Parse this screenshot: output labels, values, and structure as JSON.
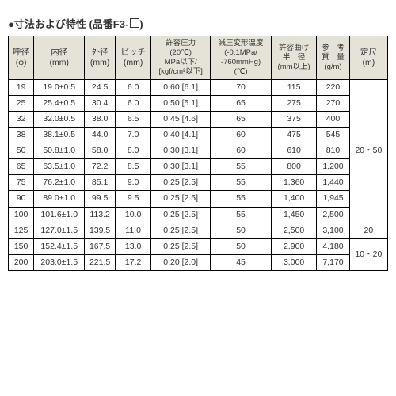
{
  "title_prefix": "●寸法および特性 (品番F3-",
  "title_suffix": ")",
  "headers": {
    "c1_line1": "呼径",
    "c1_line2": "(φ)",
    "c2_line1": "内径",
    "c2_line2": "(mm)",
    "c3_line1": "外径",
    "c3_line2": "(mm)",
    "c4_line1": "ピッチ",
    "c4_line2": "(mm)",
    "c5_line1": "許容圧力",
    "c5_line2": "(20℃)",
    "c5_line3": "MPa以下/",
    "c5_line4": "[kgf/cm²以下]",
    "c6_line1": "減圧変形温度",
    "c6_line2": "(-0.1MPa/",
    "c6_line3": "-760mmHg)",
    "c6_line4": "(℃)",
    "c7_line1": "許容曲げ",
    "c7_line2": "半　径",
    "c7_line3": "(mm以上)",
    "c8_line1": "参　考",
    "c8_line2": "質　量",
    "c8_line3": "(g/m)",
    "c9_line1": "定尺",
    "c9_line2": "(m)"
  },
  "rows": [
    {
      "r": "19",
      "id": "19.0±0.5",
      "od": "24.5",
      "p": "6.0",
      "press": "0.60 [6.1]",
      "temp": "70",
      "bend": "115",
      "wt": "220"
    },
    {
      "r": "25",
      "id": "25.4±0.5",
      "od": "30.4",
      "p": "6.0",
      "press": "0.50 [5.1]",
      "temp": "65",
      "bend": "275",
      "wt": "270"
    },
    {
      "r": "32",
      "id": "32.0±0.5",
      "od": "38.0",
      "p": "6.5",
      "press": "0.45 [4.6]",
      "temp": "65",
      "bend": "375",
      "wt": "400"
    },
    {
      "r": "38",
      "id": "38.1±0.5",
      "od": "44.0",
      "p": "7.0",
      "press": "0.40 [4.1]",
      "temp": "60",
      "bend": "475",
      "wt": "545"
    },
    {
      "r": "50",
      "id": "50.8±1.0",
      "od": "58.0",
      "p": "8.0",
      "press": "0.30 [3.1]",
      "temp": "60",
      "bend": "610",
      "wt": "810"
    },
    {
      "r": "65",
      "id": "63.5±1.0",
      "od": "72.2",
      "p": "8.5",
      "press": "0.30 [3.1]",
      "temp": "55",
      "bend": "800",
      "wt": "1,200"
    },
    {
      "r": "75",
      "id": "76.2±1.0",
      "od": "85.1",
      "p": "9.0",
      "press": "0.25 [2.5]",
      "temp": "55",
      "bend": "1,360",
      "wt": "1,440"
    },
    {
      "r": "90",
      "id": "89.0±1.0",
      "od": "99.5",
      "p": "9.5",
      "press": "0.25 [2.5]",
      "temp": "55",
      "bend": "1,400",
      "wt": "1,945"
    },
    {
      "r": "100",
      "id": "101.6±1.0",
      "od": "113.2",
      "p": "10.0",
      "press": "0.25 [2.5]",
      "temp": "55",
      "bend": "1,450",
      "wt": "2,500"
    },
    {
      "r": "125",
      "id": "127.0±1.5",
      "od": "139.5",
      "p": "11.0",
      "press": "0.25 [2.5]",
      "temp": "50",
      "bend": "2,500",
      "wt": "3,100"
    },
    {
      "r": "150",
      "id": "152.4±1.5",
      "od": "167.5",
      "p": "13.0",
      "press": "0.25 [2.5]",
      "temp": "50",
      "bend": "2,900",
      "wt": "4,180"
    },
    {
      "r": "200",
      "id": "203.0±1.5",
      "od": "221.5",
      "p": "17.2",
      "press": "0.20 [2.0]",
      "temp": "45",
      "bend": "3,000",
      "wt": "7,170"
    }
  ],
  "len_groups": {
    "g1": "20・50",
    "g2": "20",
    "g3": "10・20"
  },
  "style": {
    "header_bg": "#e5e3d8",
    "border_color": "#000000",
    "font_size_pt": 10.5
  }
}
